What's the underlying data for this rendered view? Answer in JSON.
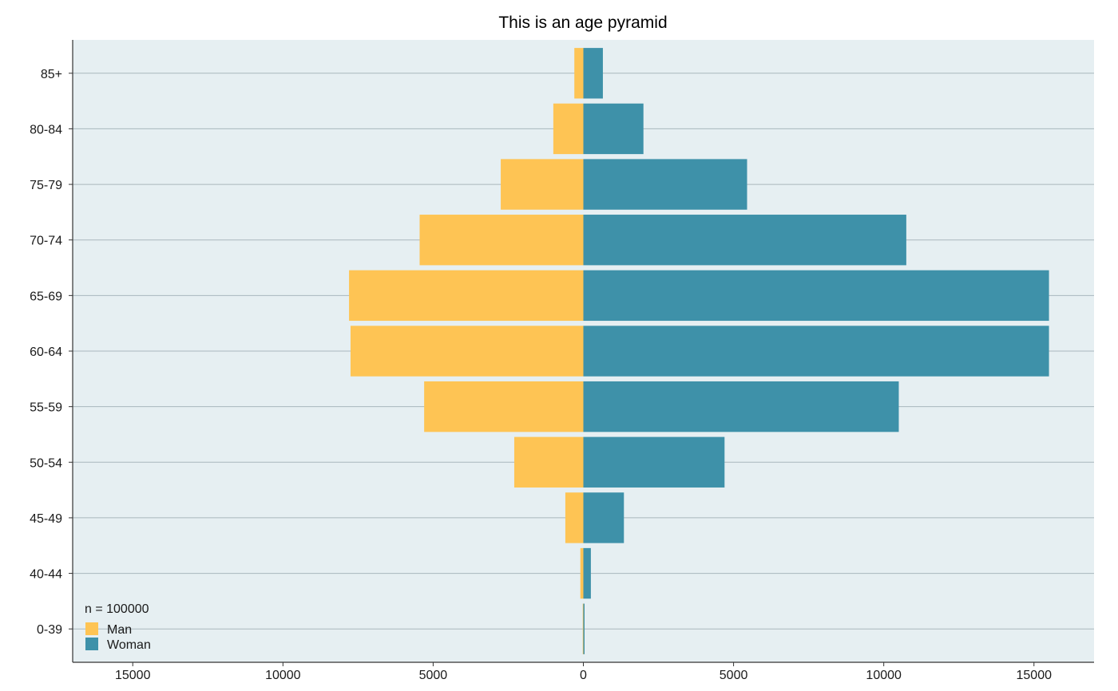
{
  "chart_data": {
    "type": "bar",
    "orientation": "horizontal",
    "layout": "diverging-pyramid",
    "title": "This is an age pyramid",
    "xlabel": "",
    "ylabel": "",
    "categories": [
      "0-39",
      "40-44",
      "45-49",
      "50-54",
      "55-59",
      "60-64",
      "65-69",
      "70-74",
      "75-79",
      "80-84",
      "85+"
    ],
    "series": [
      {
        "name": "Man",
        "direction": "left",
        "color": "#fec454",
        "values": [
          20,
          100,
          600,
          2300,
          5300,
          7750,
          7800,
          5450,
          2750,
          1000,
          300
        ]
      },
      {
        "name": "Woman",
        "direction": "right",
        "color": "#3e91a9",
        "values": [
          40,
          250,
          1350,
          4700,
          10500,
          15500,
          15500,
          10750,
          5450,
          2000,
          650
        ]
      }
    ],
    "xlim": [
      -17000,
      17000
    ],
    "xticks": [
      -15000,
      -10000,
      -5000,
      0,
      5000,
      10000,
      15000
    ],
    "xtick_labels": [
      "15000",
      "10000",
      "5000",
      "0",
      "5000",
      "10000",
      "15000"
    ],
    "grid": "horizontal",
    "panel_background": "#e6eff2",
    "grid_color": "#a9b7bd",
    "legend": {
      "title": "n = 100000",
      "position": "bottom-left",
      "items": [
        "Man",
        "Woman"
      ]
    }
  }
}
